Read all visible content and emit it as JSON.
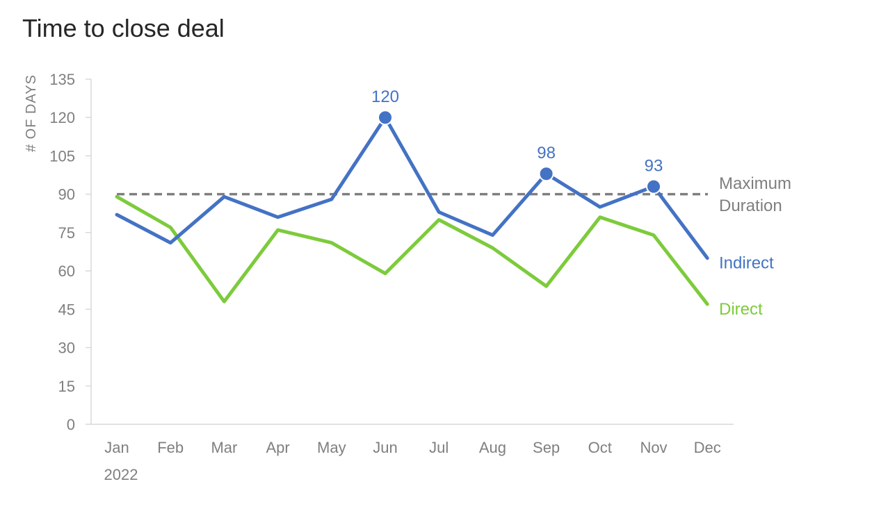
{
  "chart_data": {
    "type": "line",
    "title": "Time to close deal",
    "ylabel": "# OF DAYS",
    "xlabel": "",
    "categories": [
      "Jan",
      "Feb",
      "Mar",
      "Apr",
      "May",
      "Jun",
      "Jul",
      "Aug",
      "Sep",
      "Oct",
      "Nov",
      "Dec"
    ],
    "year_label": "2022",
    "ylim": [
      0,
      135
    ],
    "yticks": [
      0,
      15,
      30,
      45,
      60,
      75,
      90,
      105,
      120,
      135
    ],
    "series": [
      {
        "name": "Indirect",
        "color": "#4472C4",
        "values": [
          82,
          71,
          89,
          81,
          88,
          120,
          83,
          74,
          98,
          85,
          93,
          65
        ],
        "highlighted": [
          {
            "index": 5,
            "label": "120"
          },
          {
            "index": 8,
            "label": "98"
          },
          {
            "index": 10,
            "label": "93"
          }
        ]
      },
      {
        "name": "Direct",
        "color": "#7DCB3C",
        "values": [
          89,
          77,
          48,
          76,
          71,
          59,
          80,
          69,
          54,
          81,
          74,
          47
        ]
      }
    ],
    "reference_line": {
      "value": 90,
      "label_lines": [
        "Maximum",
        "Duration"
      ],
      "color": "#7F7F7F",
      "style": "dashed"
    },
    "grid": false,
    "legend": "direct labels at right end of lines"
  }
}
